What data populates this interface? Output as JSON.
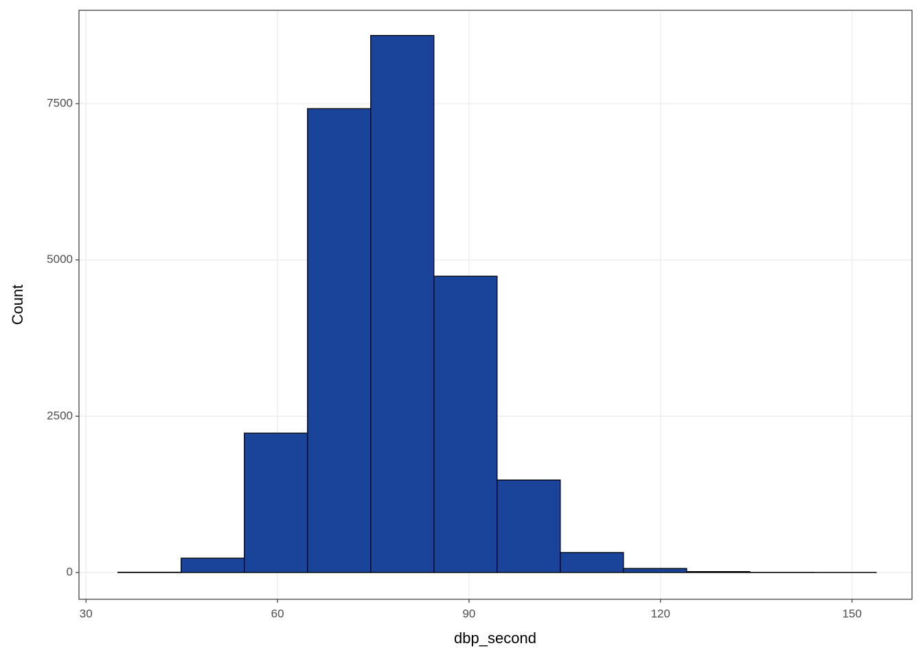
{
  "chart_data": {
    "type": "histogram",
    "x_label": "dbp_second",
    "y_label": "Count",
    "bins": [
      35.0,
      44.9,
      54.8,
      64.7,
      74.6,
      84.5,
      94.4,
      104.3,
      114.2,
      124.1,
      134.0,
      143.9,
      153.8
    ],
    "values": [
      5,
      230,
      2230,
      7420,
      8590,
      4740,
      1480,
      320,
      65,
      15,
      3,
      2
    ],
    "color": "#1a449a",
    "edge_color": "#000000",
    "xlim": [
      28.9,
      159.4
    ],
    "xticks": [
      30,
      60,
      90,
      120,
      150
    ],
    "ylim": [
      -428,
      8993
    ],
    "yticks": [
      0,
      2500,
      5000,
      7500
    ],
    "grid": true
  }
}
